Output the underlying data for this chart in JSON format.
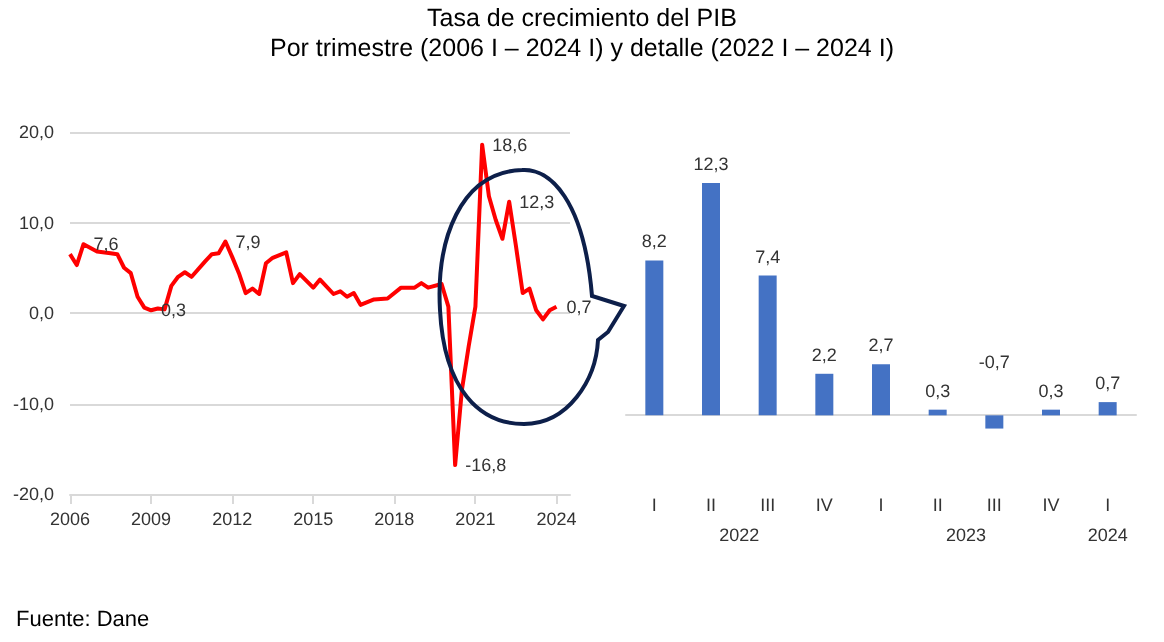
{
  "chart_data": [
    {
      "type": "line",
      "title": "Tasa de crecimiento del PIB",
      "subtitle": "Por trimestre (2006 I – 2024 I) y detalle (2022 I – 2024 I)",
      "annotations": [
        "Fuente: Dane"
      ],
      "x": [
        2006.0,
        2006.25,
        2006.5,
        2007.0,
        2007.5,
        2007.75,
        2008.0,
        2008.25,
        2008.5,
        2008.75,
        2009.0,
        2009.25,
        2009.5,
        2009.75,
        2010.0,
        2010.25,
        2010.5,
        2011.0,
        2011.25,
        2011.5,
        2011.75,
        2012.0,
        2012.25,
        2012.5,
        2012.75,
        2013.0,
        2013.25,
        2013.5,
        2014.0,
        2014.25,
        2014.5,
        2015.0,
        2015.25,
        2015.75,
        2016.0,
        2016.25,
        2016.5,
        2016.75,
        2017.25,
        2017.75,
        2018.25,
        2018.75,
        2019.0,
        2019.25,
        2019.75,
        2020.0,
        2020.25,
        2020.5,
        2020.75,
        2021.0,
        2021.25,
        2021.5,
        2021.75,
        2022.0,
        2022.25,
        2022.5,
        2022.75,
        2023.0,
        2023.25,
        2023.5,
        2023.75,
        2024.0
      ],
      "series": [
        {
          "color": "#ff0000",
          "values": [
            6.5,
            5.3,
            7.6,
            6.8,
            6.6,
            6.5,
            5.0,
            4.4,
            1.8,
            0.6,
            0.3,
            0.5,
            0.4,
            3.0,
            4.0,
            4.5,
            4.0,
            5.7,
            6.5,
            6.6,
            7.9,
            6.2,
            4.4,
            2.2,
            2.7,
            2.1,
            5.5,
            6.1,
            6.7,
            3.3,
            4.3,
            2.8,
            3.7,
            2.1,
            2.4,
            1.8,
            2.2,
            0.9,
            1.5,
            1.6,
            2.8,
            2.8,
            3.3,
            2.8,
            3.2,
            0.7,
            -16.8,
            -8.5,
            -3.7,
            0.7,
            18.6,
            12.9,
            10.3,
            8.2,
            12.3,
            7.4,
            2.2,
            2.7,
            0.3,
            -0.7,
            0.3,
            0.7
          ],
          "value_labels": [
            null,
            null,
            "7,6",
            null,
            null,
            null,
            null,
            null,
            null,
            null,
            "0,3",
            null,
            null,
            null,
            null,
            null,
            null,
            null,
            null,
            null,
            "7,9",
            null,
            null,
            null,
            null,
            null,
            null,
            null,
            null,
            null,
            null,
            null,
            null,
            null,
            null,
            null,
            null,
            null,
            null,
            null,
            null,
            null,
            null,
            null,
            null,
            null,
            "-16,8",
            null,
            null,
            null,
            "18,6",
            null,
            null,
            null,
            "12,3",
            null,
            null,
            null,
            null,
            null,
            null,
            "0,7"
          ]
        }
      ],
      "xlim": [
        2006,
        2024.5
      ],
      "xticks": [
        2006,
        2009,
        2012,
        2015,
        2018,
        2021,
        2024
      ],
      "ylim": [
        -20,
        20
      ],
      "yticks": [
        {
          "value": -20,
          "label": "-20,0"
        },
        {
          "value": -10,
          "label": "-10,0"
        },
        {
          "value": 0,
          "label": "0,0"
        },
        {
          "value": 10,
          "label": "10,0"
        },
        {
          "value": 20,
          "label": "20,0"
        }
      ],
      "grid": "y"
    },
    {
      "type": "bar",
      "categories": [
        "I",
        "II",
        "III",
        "IV",
        "I",
        "II",
        "III",
        "IV",
        "I"
      ],
      "annotations": [
        "2022",
        "2023",
        "2024"
      ],
      "values": [
        8.2,
        12.3,
        7.4,
        2.2,
        2.7,
        0.3,
        -0.7,
        0.3,
        0.7
      ],
      "color": "#4472c4",
      "value_labels": [
        "8,2",
        "12,3",
        "7,4",
        "2,2",
        "2,7",
        "0,3",
        "-0,7",
        "0,3",
        "0,7"
      ],
      "tick_labels": "x"
    }
  ]
}
